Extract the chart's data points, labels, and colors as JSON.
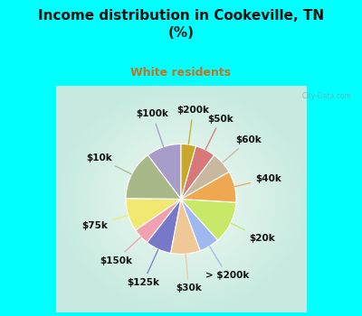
{
  "title": "Income distribution in Cookeville, TN\n(%)",
  "subtitle": "White residents",
  "title_color": "#111111",
  "subtitle_color": "#c87020",
  "background_top": "#00ffff",
  "labels": [
    "$100k",
    "$10k",
    "$75k",
    "$150k",
    "$125k",
    "$30k",
    "> $200k",
    "$20k",
    "$40k",
    "$60k",
    "$50k",
    "$200k"
  ],
  "values": [
    9.5,
    13.5,
    9.0,
    4.5,
    7.0,
    8.0,
    5.5,
    11.5,
    8.5,
    6.0,
    5.5,
    4.0
  ],
  "colors": [
    "#a89cc8",
    "#a8b888",
    "#f0e870",
    "#f0a0b0",
    "#7878c8",
    "#f0c898",
    "#a0b8f0",
    "#c8e868",
    "#f0a850",
    "#c8b8a0",
    "#d87878",
    "#c8a828"
  ],
  "startangle": 90,
  "label_fontsize": 7.5,
  "wedge_edge_color": "white",
  "wedge_linewidth": 0.8
}
